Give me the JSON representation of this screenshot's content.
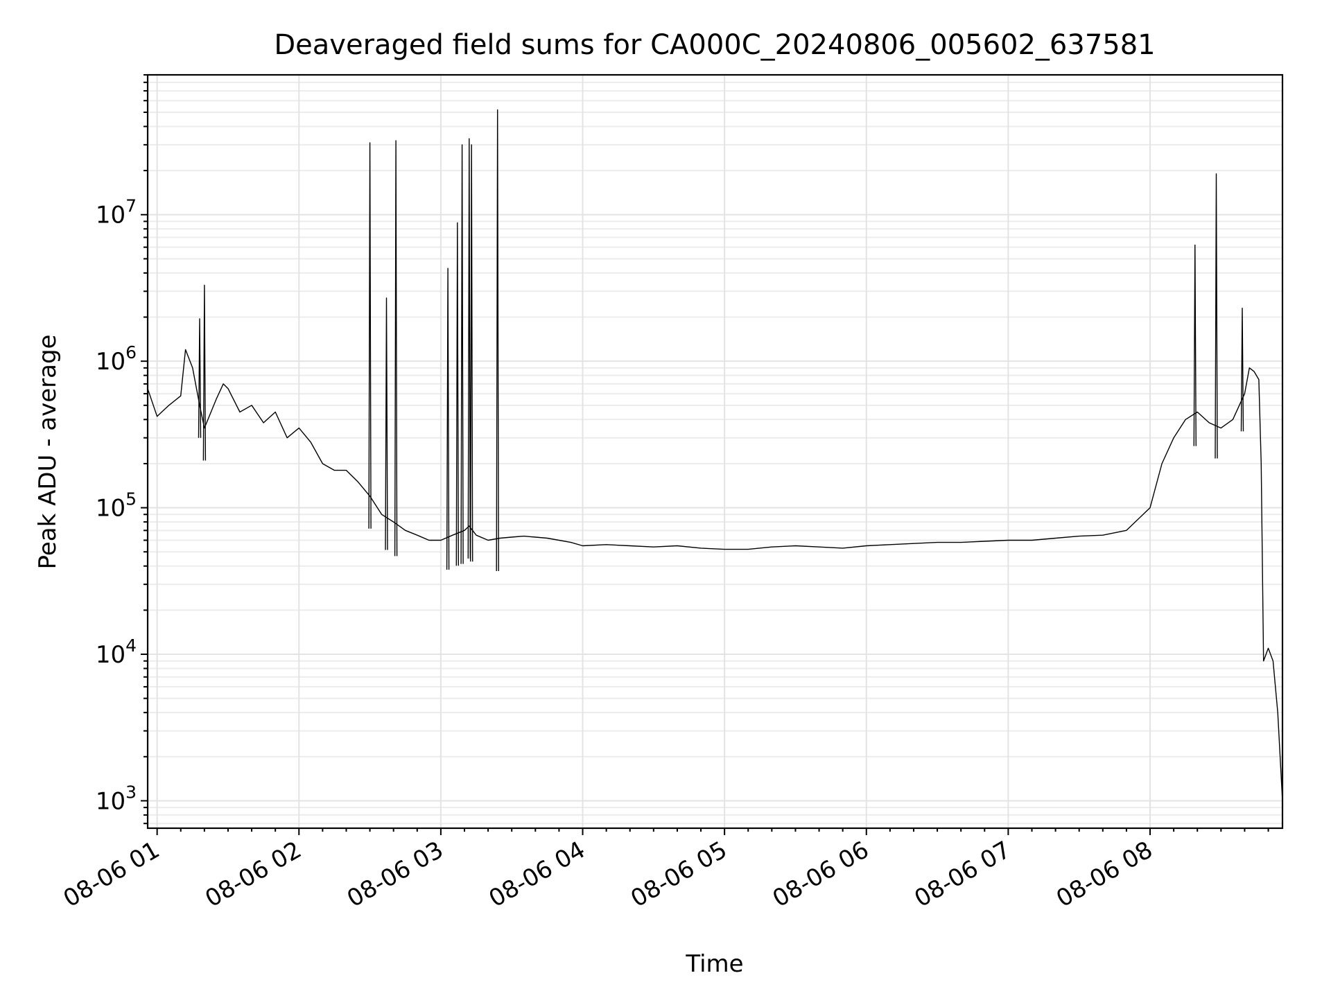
{
  "chart_data": {
    "type": "line",
    "title": "Deaveraged field sums for CA000C_20240806_005602_637581",
    "xlabel": "Time",
    "ylabel": "Peak ADU - average",
    "yscale": "log",
    "xlim": [
      "2024-08-06 00:56",
      "2024-08-06 08:56"
    ],
    "ylim": [
      650,
      90000000
    ],
    "grid": true,
    "x_ticks": [
      {
        "value": "2024-08-06 01:00",
        "label": "08-06 01"
      },
      {
        "value": "2024-08-06 02:00",
        "label": "08-06 02"
      },
      {
        "value": "2024-08-06 03:00",
        "label": "08-06 03"
      },
      {
        "value": "2024-08-06 04:00",
        "label": "08-06 04"
      },
      {
        "value": "2024-08-06 05:00",
        "label": "08-06 05"
      },
      {
        "value": "2024-08-06 06:00",
        "label": "08-06 06"
      },
      {
        "value": "2024-08-06 07:00",
        "label": "08-06 07"
      },
      {
        "value": "2024-08-06 08:00",
        "label": "08-06 08"
      }
    ],
    "y_ticks": [
      {
        "value": 1000,
        "base": "10",
        "exp": "3"
      },
      {
        "value": 10000,
        "base": "10",
        "exp": "4"
      },
      {
        "value": 100000,
        "base": "10",
        "exp": "5"
      },
      {
        "value": 1000000,
        "base": "10",
        "exp": "6"
      },
      {
        "value": 10000000,
        "base": "10",
        "exp": "7"
      }
    ],
    "series": [
      {
        "color": "#000000",
        "x": [
          "2024-08-06 00:56",
          "2024-08-06 01:00",
          "2024-08-06 01:05",
          "2024-08-06 01:10",
          "2024-08-06 01:12",
          "2024-08-06 01:15",
          "2024-08-06 01:18",
          "2024-08-06 01:20",
          "2024-08-06 01:25",
          "2024-08-06 01:28",
          "2024-08-06 01:30",
          "2024-08-06 01:35",
          "2024-08-06 01:40",
          "2024-08-06 01:45",
          "2024-08-06 01:50",
          "2024-08-06 01:55",
          "2024-08-06 02:00",
          "2024-08-06 02:05",
          "2024-08-06 02:10",
          "2024-08-06 02:15",
          "2024-08-06 02:20",
          "2024-08-06 02:25",
          "2024-08-06 02:30",
          "2024-08-06 02:35",
          "2024-08-06 02:40",
          "2024-08-06 02:45",
          "2024-08-06 02:50",
          "2024-08-06 02:55",
          "2024-08-06 03:00",
          "2024-08-06 03:05",
          "2024-08-06 03:10",
          "2024-08-06 03:12",
          "2024-08-06 03:15",
          "2024-08-06 03:20",
          "2024-08-06 03:25",
          "2024-08-06 03:30",
          "2024-08-06 03:35",
          "2024-08-06 03:40",
          "2024-08-06 03:45",
          "2024-08-06 03:50",
          "2024-08-06 03:55",
          "2024-08-06 04:00",
          "2024-08-06 04:10",
          "2024-08-06 04:20",
          "2024-08-06 04:30",
          "2024-08-06 04:40",
          "2024-08-06 04:50",
          "2024-08-06 05:00",
          "2024-08-06 05:10",
          "2024-08-06 05:20",
          "2024-08-06 05:30",
          "2024-08-06 05:40",
          "2024-08-06 05:50",
          "2024-08-06 06:00",
          "2024-08-06 06:10",
          "2024-08-06 06:20",
          "2024-08-06 06:30",
          "2024-08-06 06:40",
          "2024-08-06 06:50",
          "2024-08-06 07:00",
          "2024-08-06 07:10",
          "2024-08-06 07:20",
          "2024-08-06 07:30",
          "2024-08-06 07:40",
          "2024-08-06 07:50",
          "2024-08-06 08:00",
          "2024-08-06 08:05",
          "2024-08-06 08:10",
          "2024-08-06 08:15",
          "2024-08-06 08:20",
          "2024-08-06 08:25",
          "2024-08-06 08:30",
          "2024-08-06 08:35",
          "2024-08-06 08:40",
          "2024-08-06 08:42",
          "2024-08-06 08:44",
          "2024-08-06 08:46",
          "2024-08-06 08:47",
          "2024-08-06 08:48",
          "2024-08-06 08:50",
          "2024-08-06 08:52",
          "2024-08-06 08:54",
          "2024-08-06 08:56"
        ],
        "y": [
          650000,
          420000,
          500000,
          580000,
          1200000,
          900000,
          500000,
          350000,
          550000,
          700000,
          650000,
          450000,
          500000,
          380000,
          450000,
          300000,
          350000,
          280000,
          200000,
          180000,
          180000,
          150000,
          120000,
          90000,
          80000,
          70000,
          65000,
          60000,
          60000,
          65000,
          70000,
          75000,
          65000,
          60000,
          62000,
          63000,
          64000,
          63000,
          62000,
          60000,
          58000,
          55000,
          56000,
          55000,
          54000,
          55000,
          53000,
          52000,
          52000,
          54000,
          55000,
          54000,
          53000,
          55000,
          56000,
          57000,
          58000,
          58000,
          59000,
          60000,
          60000,
          62000,
          64000,
          65000,
          70000,
          100000,
          200000,
          300000,
          400000,
          450000,
          380000,
          350000,
          400000,
          600000,
          900000,
          850000,
          750000,
          200000,
          9000,
          11000,
          9000,
          4000,
          1000
        ]
      }
    ],
    "spikes": [
      {
        "x": "2024-08-06 01:20",
        "y": 3300000
      },
      {
        "x": "2024-08-06 01:18",
        "y": 1950000
      },
      {
        "x": "2024-08-06 02:30",
        "y": 31000000
      },
      {
        "x": "2024-08-06 02:37",
        "y": 2700000
      },
      {
        "x": "2024-08-06 02:41",
        "y": 32000000
      },
      {
        "x": "2024-08-06 03:03",
        "y": 4300000
      },
      {
        "x": "2024-08-06 03:07",
        "y": 8800000
      },
      {
        "x": "2024-08-06 03:09",
        "y": 30000000
      },
      {
        "x": "2024-08-06 03:12",
        "y": 33000000
      },
      {
        "x": "2024-08-06 03:13",
        "y": 30000000
      },
      {
        "x": "2024-08-06 03:24",
        "y": 52000000
      },
      {
        "x": "2024-08-06 08:19",
        "y": 6200000
      },
      {
        "x": "2024-08-06 08:28",
        "y": 19000000
      },
      {
        "x": "2024-08-06 08:39",
        "y": 2300000
      }
    ]
  }
}
